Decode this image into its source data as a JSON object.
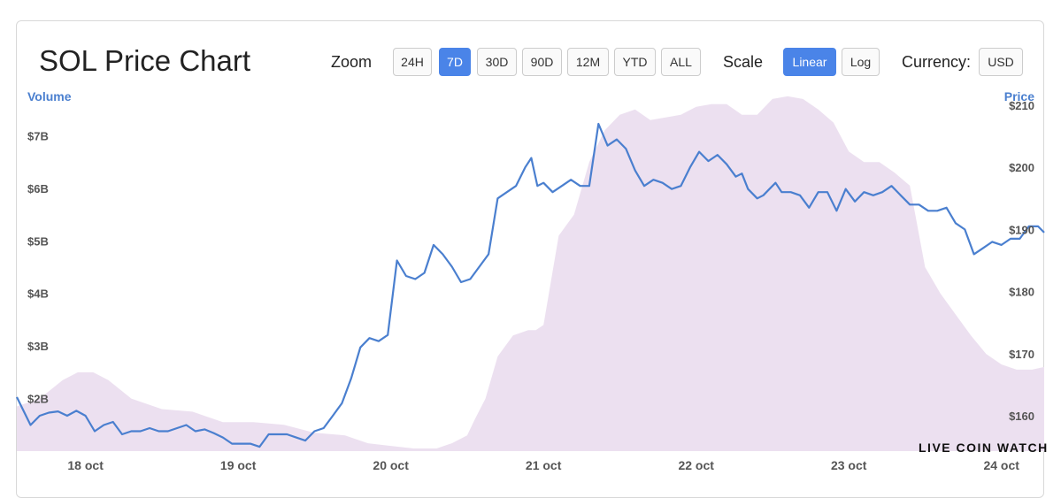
{
  "header": {
    "title": "SOL Price Chart",
    "zoom_label": "Zoom",
    "zoom_options": [
      "24H",
      "7D",
      "30D",
      "90D",
      "12M",
      "YTD",
      "ALL"
    ],
    "zoom_selected": "7D",
    "scale_label": "Scale",
    "scale_options": [
      "Linear",
      "Log"
    ],
    "scale_selected": "Linear",
    "currency_label": "Currency:",
    "currency_value": "USD"
  },
  "watermark": "LIVE COIN WATCH",
  "chart_data": {
    "type": "area",
    "y_left_label": "Volume",
    "y_right_label": "Price",
    "volume_ticks": [
      "$2B",
      "$3B",
      "$4B",
      "$5B",
      "$6B",
      "$7B"
    ],
    "volume_tick_values": [
      2,
      3,
      4,
      5,
      6,
      7
    ],
    "price_ticks": [
      "$160",
      "$170",
      "$180",
      "$190",
      "$200",
      "$210"
    ],
    "price_tick_values": [
      160,
      170,
      180,
      190,
      200,
      210
    ],
    "x_ticks": [
      "18 oct",
      "19 oct",
      "20 oct",
      "21 oct",
      "22 oct",
      "23 oct",
      "24 oct"
    ],
    "x_tick_days": [
      18,
      19,
      20,
      21,
      22,
      23,
      24
    ],
    "x_range_days": [
      17.55,
      24.28
    ],
    "volume_range_b": [
      1.0,
      7.9
    ],
    "price_range": [
      154.3,
      212.7
    ],
    "colors": {
      "price_line": "#4a7fcf",
      "volume_fill": "#ece0f0",
      "axis_title": "#4a7fcf",
      "tick": "#555555"
    },
    "series": [
      {
        "name": "Price",
        "x": [
          17.55,
          17.59,
          17.64,
          17.7,
          17.76,
          17.82,
          17.88,
          17.94,
          18.0,
          18.06,
          18.12,
          18.18,
          18.24,
          18.3,
          18.36,
          18.42,
          18.48,
          18.54,
          18.6,
          18.66,
          18.72,
          18.78,
          18.84,
          18.9,
          18.96,
          19.02,
          19.08,
          19.14,
          19.2,
          19.26,
          19.32,
          19.38,
          19.44,
          19.5,
          19.56,
          19.62,
          19.68,
          19.74,
          19.8,
          19.86,
          19.92,
          19.98,
          20.04,
          20.1,
          20.16,
          20.22,
          20.28,
          20.34,
          20.4,
          20.46,
          20.52,
          20.58,
          20.64,
          20.7,
          20.76,
          20.82,
          20.88,
          20.92,
          20.96,
          21.0,
          21.06,
          21.12,
          21.18,
          21.24,
          21.3,
          21.36,
          21.42,
          21.48,
          21.54,
          21.6,
          21.66,
          21.72,
          21.78,
          21.84,
          21.9,
          21.96,
          22.02,
          22.08,
          22.14,
          22.2,
          22.26,
          22.3,
          22.34,
          22.4,
          22.44,
          22.48,
          22.52,
          22.56,
          22.62,
          22.68,
          22.74,
          22.8,
          22.86,
          22.92,
          22.98,
          23.04,
          23.1,
          23.16,
          23.22,
          23.28,
          23.34,
          23.4,
          23.46,
          23.52,
          23.58,
          23.64,
          23.7,
          23.76,
          23.82,
          23.88,
          23.94,
          24.0,
          24.06,
          24.12,
          24.18,
          24.24,
          24.28
        ],
        "values": [
          163.0,
          161.0,
          158.5,
          160.0,
          160.5,
          160.7,
          160.0,
          160.8,
          160.0,
          157.5,
          158.5,
          159.0,
          157.0,
          157.5,
          157.5,
          158.0,
          157.5,
          157.5,
          158.0,
          158.5,
          157.5,
          157.8,
          157.2,
          156.5,
          155.5,
          155.5,
          155.5,
          155.0,
          157.0,
          157.0,
          157.0,
          156.5,
          156.0,
          157.5,
          158.0,
          160.0,
          162.0,
          166.0,
          171.0,
          172.5,
          172.0,
          173.0,
          185.0,
          182.5,
          182.0,
          183.0,
          187.5,
          186.0,
          184.0,
          181.5,
          182.0,
          184.0,
          186.0,
          195.0,
          196.0,
          197.0,
          200.0,
          201.5,
          197.0,
          197.5,
          196.0,
          197.0,
          198.0,
          197.0,
          197.0,
          207.0,
          203.5,
          204.5,
          203.0,
          199.5,
          197.0,
          198.0,
          197.5,
          196.5,
          197.0,
          200.0,
          202.5,
          201.0,
          202.0,
          200.5,
          198.5,
          199.0,
          196.5,
          195.0,
          195.5,
          196.5,
          197.5,
          196.0,
          196.0,
          195.5,
          193.5,
          196.0,
          196.0,
          193.0,
          196.5,
          194.5,
          196.0,
          195.5,
          196.0,
          197.0,
          195.5,
          194.0,
          194.0,
          193.0,
          193.0,
          193.5,
          191.0,
          190.0,
          186.0,
          187.0,
          188.0,
          187.5,
          188.5,
          188.5,
          190.5,
          190.5,
          189.5
        ]
      },
      {
        "name": "Volume",
        "x": [
          17.55,
          17.7,
          17.85,
          17.95,
          18.05,
          18.15,
          18.3,
          18.5,
          18.7,
          18.9,
          19.1,
          19.3,
          19.5,
          19.7,
          19.85,
          20.0,
          20.15,
          20.3,
          20.4,
          20.5,
          20.55,
          20.62,
          20.7,
          20.8,
          20.9,
          20.95,
          21.0,
          21.1,
          21.2,
          21.3,
          21.4,
          21.5,
          21.6,
          21.7,
          21.8,
          21.9,
          22.0,
          22.1,
          22.2,
          22.3,
          22.4,
          22.5,
          22.6,
          22.7,
          22.8,
          22.9,
          23.0,
          23.1,
          23.2,
          23.3,
          23.4,
          23.5,
          23.6,
          23.7,
          23.8,
          23.9,
          24.0,
          24.1,
          24.2,
          24.28
        ],
        "values": [
          1.85,
          2.0,
          2.35,
          2.5,
          2.5,
          2.35,
          2.0,
          1.8,
          1.75,
          1.55,
          1.55,
          1.5,
          1.35,
          1.3,
          1.15,
          1.1,
          1.05,
          1.05,
          1.15,
          1.3,
          1.6,
          2.0,
          2.8,
          3.2,
          3.3,
          3.3,
          3.4,
          5.1,
          5.5,
          6.5,
          7.1,
          7.4,
          7.5,
          7.3,
          7.35,
          7.4,
          7.55,
          7.6,
          7.6,
          7.4,
          7.4,
          7.7,
          7.75,
          7.7,
          7.5,
          7.25,
          6.7,
          6.5,
          6.5,
          6.3,
          6.05,
          4.5,
          4.0,
          3.6,
          3.2,
          2.85,
          2.65,
          2.55,
          2.55,
          2.6
        ]
      }
    ]
  }
}
